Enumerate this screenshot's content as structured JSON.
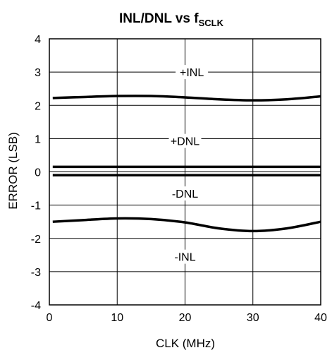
{
  "chart_data": {
    "type": "line",
    "title": {
      "main": "INL/DNL vs f",
      "subscript": "SCLK"
    },
    "xlabel": "CLK (MHz)",
    "ylabel": "ERROR (LSB)",
    "xlim": [
      0,
      40
    ],
    "ylim": [
      -4,
      4
    ],
    "x_ticks": [
      0,
      10,
      20,
      30,
      40
    ],
    "y_ticks": [
      4,
      3,
      2,
      1,
      0,
      -1,
      -2,
      -3,
      -4
    ],
    "grid": true,
    "series": [
      {
        "name": "+INL",
        "x": [
          0.5,
          5,
          10,
          15,
          20,
          25,
          30,
          35,
          40
        ],
        "y": [
          2.22,
          2.25,
          2.28,
          2.28,
          2.24,
          2.18,
          2.15,
          2.18,
          2.27
        ]
      },
      {
        "name": "+DNL",
        "x": [
          0.5,
          40
        ],
        "y": [
          0.15,
          0.15
        ]
      },
      {
        "name": "-DNL",
        "x": [
          0.5,
          40
        ],
        "y": [
          -0.1,
          -0.1
        ]
      },
      {
        "name": "-INL",
        "x": [
          0.5,
          5,
          10,
          15,
          20,
          25,
          30,
          35,
          40
        ],
        "y": [
          -1.5,
          -1.45,
          -1.4,
          -1.42,
          -1.52,
          -1.7,
          -1.78,
          -1.7,
          -1.5
        ]
      }
    ],
    "series_label_positions": [
      {
        "name": "+INL",
        "x": 21,
        "y": 3.0
      },
      {
        "name": "+DNL",
        "x": 20,
        "y": 0.93
      },
      {
        "name": "-DNL",
        "x": 20,
        "y": -0.65
      },
      {
        "name": "-INL",
        "x": 20,
        "y": -2.55
      }
    ]
  }
}
